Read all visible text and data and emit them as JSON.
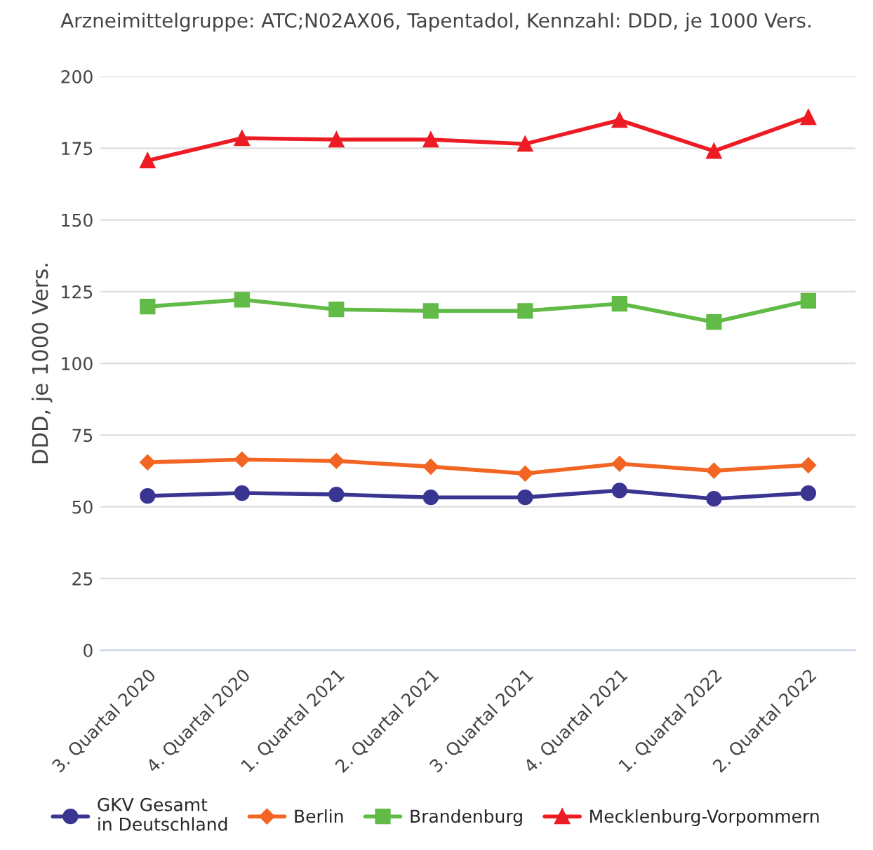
{
  "chart_data": {
    "type": "line",
    "title": "Arzneimittelgruppe: ATC;N02AX06, Tapentadol, Kennzahl: DDD, je 1000 Vers.",
    "ylabel": "DDD, je 1000 Vers.",
    "categories": [
      "3. Quartal 2020",
      "4. Quartal 2020",
      "1. Quartal 2021",
      "2. Quartal 2021",
      "3. Quartal 2021",
      "4. Quartal 2021",
      "1. Quartal 2022",
      "2. Quartal 2022"
    ],
    "series": [
      {
        "name": "GKV Gesamt\nin Deutschland",
        "color": "#3a3591",
        "marker": "circle",
        "values": [
          53.8,
          54.8,
          54.3,
          53.3,
          53.3,
          55.7,
          52.8,
          54.8
        ]
      },
      {
        "name": "Berlin",
        "color": "#f26522",
        "marker": "diamond",
        "values": [
          65.5,
          66.5,
          66,
          64,
          61.6,
          65,
          62.6,
          64.5
        ]
      },
      {
        "name": "Brandenburg",
        "color": "#61bb46",
        "marker": "square",
        "values": [
          119.8,
          122.2,
          118.8,
          118.3,
          118.3,
          120.8,
          114.4,
          121.8
        ]
      },
      {
        "name": "Mecklenburg-Vorpommern",
        "color": "#ed1c24",
        "marker": "triangle",
        "values": [
          170.7,
          178.5,
          178,
          178,
          176.5,
          184.8,
          174,
          185.8
        ]
      }
    ],
    "ylim": [
      0,
      200
    ],
    "yticks": [
      0,
      25,
      50,
      75,
      100,
      125,
      150,
      175,
      200
    ],
    "grid": "y",
    "legend": "bottom",
    "line_style": "solid"
  }
}
